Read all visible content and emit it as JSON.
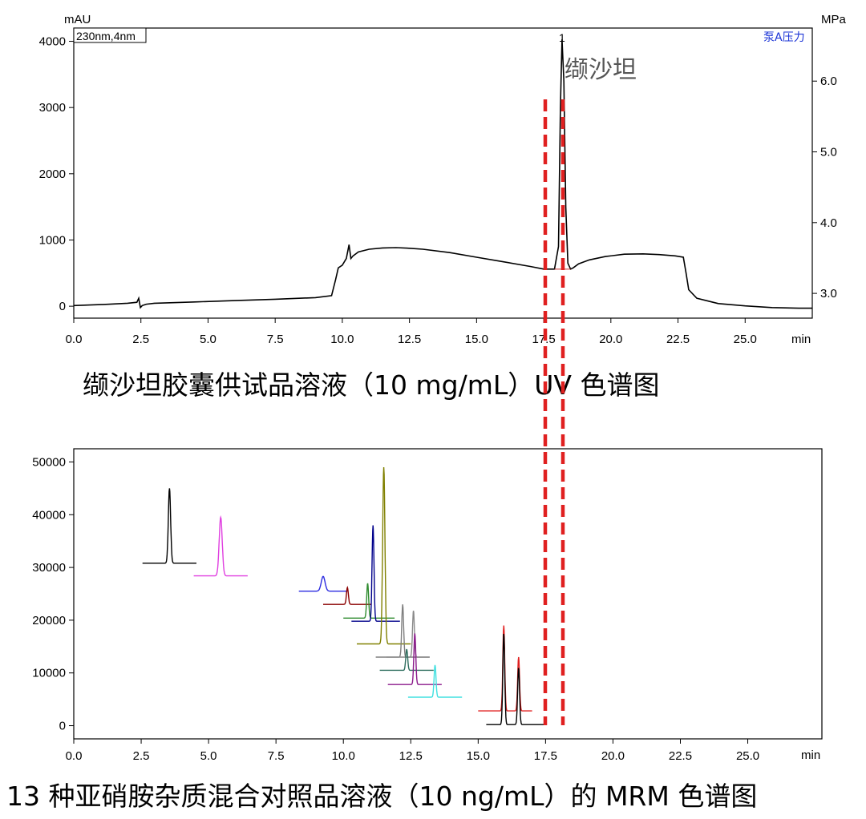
{
  "chart_data": [
    {
      "type": "line",
      "caption": "缬沙坦胶囊供试品溶液（10 mg/mL）UV 色谱图",
      "detector_label": "230nm,4nm",
      "y_unit_left": "mAU",
      "y_unit_right": "MPa",
      "x_unit": "min",
      "legend": "泵A压力",
      "peak_label": "缬沙坦",
      "peak_number": "1",
      "xlim": [
        0,
        27.5
      ],
      "ylim": [
        -180,
        4200
      ],
      "ylim_right": [
        2.65,
        6.75
      ],
      "x_ticks": [
        "0.0",
        "2.5",
        "5.0",
        "7.5",
        "10.0",
        "12.5",
        "15.0",
        "17.5",
        "20.0",
        "22.5",
        "25.0"
      ],
      "y_ticks": [
        "0",
        "1000",
        "2000",
        "3000",
        "4000"
      ],
      "y_ticks_right": [
        "3.0",
        "4.0",
        "5.0",
        "6.0"
      ],
      "series": [
        {
          "color": "#000000",
          "x": [
            0,
            1.0,
            2.0,
            2.35,
            2.42,
            2.48,
            2.55,
            2.7,
            3.0,
            4.5,
            6.0,
            7.5,
            9.0,
            9.6,
            9.75,
            9.85,
            10.0,
            10.15,
            10.25,
            10.32,
            10.4,
            10.6,
            11.0,
            11.5,
            12.0,
            12.5,
            13.0,
            14.0,
            15.0,
            16.0,
            17.0,
            17.5,
            17.9,
            18.05,
            18.12,
            18.18,
            18.25,
            18.32,
            18.4,
            18.5,
            18.6,
            18.8,
            19.2,
            19.8,
            20.5,
            21.2,
            21.8,
            22.4,
            22.7,
            22.8,
            22.9,
            23.2,
            24.0,
            25.0,
            26.0,
            27.0,
            27.5
          ],
          "y": [
            10,
            25,
            45,
            60,
            120,
            -20,
            10,
            30,
            45,
            65,
            85,
            105,
            130,
            160,
            400,
            580,
            620,
            720,
            930,
            720,
            760,
            820,
            860,
            880,
            885,
            875,
            860,
            810,
            740,
            670,
            600,
            560,
            560,
            900,
            3000,
            4030,
            3400,
            1500,
            650,
            560,
            580,
            640,
            700,
            750,
            785,
            790,
            780,
            760,
            740,
            500,
            250,
            120,
            40,
            5,
            -20,
            -30,
            -30
          ]
        }
      ]
    },
    {
      "type": "line",
      "caption": "13 种亚硝胺杂质混合对照品溶液（10 ng/mL）的 MRM 色谱图",
      "x_unit": "min",
      "xlim": [
        0,
        27.75
      ],
      "ylim": [
        -2500,
        52500
      ],
      "x_ticks": [
        "0.0",
        "2.5",
        "5.0",
        "7.5",
        "10.0",
        "12.5",
        "15.0",
        "17.5",
        "20.0",
        "22.5",
        "25.0"
      ],
      "y_ticks": [
        "0",
        "10000",
        "20000",
        "30000",
        "40000",
        "50000"
      ],
      "series": [
        {
          "color": "#000000",
          "rt": 3.55,
          "x_start": 2.55,
          "x_end": 4.55,
          "baseline": 30800,
          "apex": 45000,
          "width": 0.06
        },
        {
          "color": "#e040e0",
          "rt": 5.45,
          "x_start": 4.45,
          "x_end": 6.45,
          "baseline": 28400,
          "apex": 39500,
          "width": 0.08
        },
        {
          "color": "#2a2ae0",
          "rt": 9.25,
          "x_start": 8.35,
          "x_end": 10.15,
          "baseline": 25500,
          "apex": 28300,
          "width": 0.1
        },
        {
          "color": "#8b0000",
          "rt": 10.15,
          "x_start": 9.25,
          "x_end": 11.05,
          "baseline": 23000,
          "apex": 26200,
          "width": 0.05
        },
        {
          "color": "#2e8b2e",
          "rt": 10.9,
          "x_start": 10.0,
          "x_end": 11.9,
          "baseline": 20400,
          "apex": 27000,
          "width": 0.05
        },
        {
          "color": "#00008b",
          "rt": 11.1,
          "x_start": 10.3,
          "x_end": 12.1,
          "baseline": 19800,
          "apex": 38000,
          "width": 0.05
        },
        {
          "color": "#808000",
          "rt": 11.5,
          "x_start": 10.5,
          "x_end": 12.5,
          "baseline": 15500,
          "apex": 49000,
          "width": 0.06
        },
        {
          "color": "#7f7f7f",
          "rt": 12.2,
          "x_start": 11.2,
          "x_end": 13.2,
          "baseline": 13000,
          "apex": 23000,
          "width": 0.05
        },
        {
          "color": "#8a8a8a",
          "rt": 12.6,
          "x_start": 11.6,
          "x_end": 13.2,
          "baseline": 13000,
          "apex": 21800,
          "width": 0.05
        },
        {
          "color": "#2f6f5f",
          "rt": 12.35,
          "x_start": 11.35,
          "x_end": 13.35,
          "baseline": 10500,
          "apex": 14500,
          "width": 0.05
        },
        {
          "color": "#8b1a8b",
          "rt": 12.65,
          "x_start": 11.65,
          "x_end": 13.65,
          "baseline": 7800,
          "apex": 17500,
          "width": 0.05
        },
        {
          "color": "#40e0e0",
          "rt": 13.4,
          "x_start": 12.4,
          "x_end": 14.4,
          "baseline": 5400,
          "apex": 11500,
          "width": 0.05
        },
        {
          "color": "#e02020",
          "rt": 15.95,
          "rt2": 16.5,
          "x_start": 15.0,
          "x_end": 17.0,
          "baseline": 2800,
          "apex": 19000,
          "apex2": 13000,
          "width": 0.05
        },
        {
          "color": "#000000",
          "rt": 15.95,
          "rt2": 16.5,
          "x_start": 15.3,
          "x_end": 17.5,
          "baseline": 200,
          "apex": 17500,
          "apex2": 11000,
          "width": 0.05
        }
      ]
    }
  ]
}
